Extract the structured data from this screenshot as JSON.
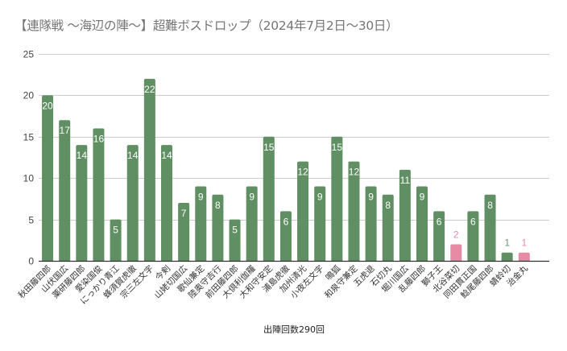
{
  "chart_data": {
    "type": "bar",
    "title": "【連隊戦 ～海辺の陣～】超難ボスドロップ（2024年7月2日～30日）",
    "xlabel": "出陣回数290回",
    "ylabel": "",
    "ylim": [
      0,
      25
    ],
    "yticks": [
      0,
      5,
      10,
      15,
      20,
      25
    ],
    "grid": true,
    "legend": "none",
    "colors": {
      "default": "#5f8f62",
      "highlight": "#e68aa5",
      "label_default": "#6a9a6c",
      "label_highlight": "#e68aa5",
      "label_inside": "#ffffff"
    },
    "categories": [
      "秋田藤四郎",
      "山伏国広",
      "薬研藤四郎",
      "愛染国俊",
      "にっかり青江",
      "蜂須賀虎徹",
      "宗三左文字",
      "今剣",
      "山姥切国広",
      "歌仙兼定",
      "陸奥守吉行",
      "前田藤四郎",
      "大倶利伽羅",
      "大和守安定",
      "浦島虎徹",
      "加州清光",
      "小夜左文字",
      "鳴狐",
      "和泉守兼定",
      "五虎退",
      "石切丸",
      "堀川国広",
      "乱藤四郎",
      "獅子王",
      "北谷菜切",
      "同田貫正国",
      "鯰尾藤四郎",
      "蜻蛉切",
      "治金丸"
    ],
    "values": [
      20,
      17,
      14,
      16,
      5,
      14,
      22,
      14,
      7,
      9,
      8,
      5,
      9,
      15,
      6,
      12,
      9,
      15,
      12,
      9,
      8,
      11,
      9,
      6,
      2,
      6,
      8,
      1,
      1
    ],
    "highlight": [
      false,
      false,
      false,
      false,
      false,
      false,
      false,
      false,
      false,
      false,
      false,
      false,
      false,
      false,
      false,
      false,
      false,
      false,
      false,
      false,
      false,
      false,
      false,
      false,
      true,
      false,
      false,
      false,
      true
    ]
  }
}
